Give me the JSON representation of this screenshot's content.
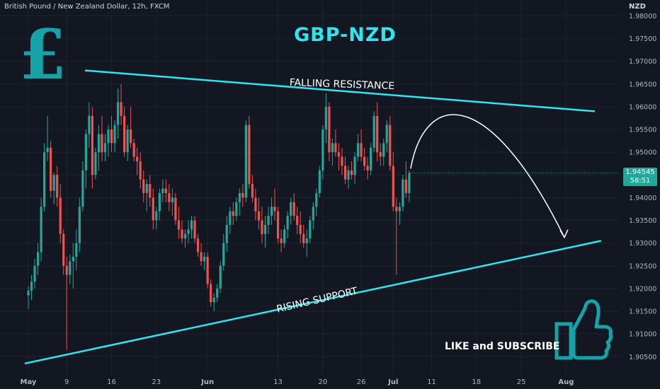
{
  "header": {
    "symbol": "British Pound / New Zealand Dollar, 12h, FXCM",
    "currency_unit": "NZD"
  },
  "overlay": {
    "title": "GBP-NZD",
    "pound_symbol": "£",
    "resistance_label": "FALLING RESISTANCE",
    "support_label": "RISING SUPPORT",
    "cta_text": "LIKE and SUBSCRIBE",
    "thumbs_icon": "thumbs-up-icon"
  },
  "price_tag": {
    "price": "1.94545",
    "countdown": "58:51"
  },
  "colors": {
    "up": "#26a69a",
    "down": "#ef5350",
    "trendline": "#2ee6f0",
    "accent": "#17a2a8",
    "background": "#131722"
  },
  "chart_data": {
    "type": "candlestick",
    "title": "GBP-NZD",
    "y_axis_side": "right",
    "ylim": [
      1.901,
      1.9835
    ],
    "y_ticks": [
      "1.98000",
      "1.97500",
      "1.97000",
      "1.96500",
      "1.96000",
      "1.95500",
      "1.95000",
      "1.94500",
      "1.94000",
      "1.93500",
      "1.93000",
      "1.92500",
      "1.92000",
      "1.91500",
      "1.91000",
      "1.90500"
    ],
    "x_ticks": [
      {
        "label": "May",
        "i": 0
      },
      {
        "label": "9",
        "i": 12
      },
      {
        "label": "16",
        "i": 26
      },
      {
        "label": "23",
        "i": 40
      },
      {
        "label": "Jun",
        "i": 56
      },
      {
        "label": "13",
        "i": 78
      },
      {
        "label": "20",
        "i": 92
      },
      {
        "label": "26",
        "i": 104
      },
      {
        "label": "Jul",
        "i": 114
      },
      {
        "label": "11",
        "i": 126
      },
      {
        "label": "18",
        "i": 140
      },
      {
        "label": "25",
        "i": 154
      },
      {
        "label": "Aug",
        "i": 168
      }
    ],
    "candles": [
      [
        1.9185,
        1.9205,
        1.9155,
        1.9195
      ],
      [
        1.9195,
        1.923,
        1.9175,
        1.9215
      ],
      [
        1.9215,
        1.9265,
        1.92,
        1.925
      ],
      [
        1.925,
        1.93,
        1.923,
        1.928
      ],
      [
        1.928,
        1.94,
        1.926,
        1.938
      ],
      [
        1.938,
        1.952,
        1.937,
        1.95
      ],
      [
        1.95,
        1.958,
        1.948,
        1.951
      ],
      [
        1.951,
        1.9525,
        1.94,
        1.9415
      ],
      [
        1.9415,
        1.9455,
        1.9385,
        1.945
      ],
      [
        1.945,
        1.947,
        1.938,
        1.94
      ],
      [
        1.94,
        1.943,
        1.93,
        1.932
      ],
      [
        1.932,
        1.933,
        1.923,
        1.925
      ],
      [
        1.925,
        1.927,
        1.9065,
        1.923
      ],
      [
        1.923,
        1.9275,
        1.921,
        1.926
      ],
      [
        1.926,
        1.93,
        1.92,
        1.927
      ],
      [
        1.927,
        1.933,
        1.924,
        1.93
      ],
      [
        1.93,
        1.94,
        1.928,
        1.938
      ],
      [
        1.938,
        1.948,
        1.937,
        1.946
      ],
      [
        1.946,
        1.955,
        1.942,
        1.954
      ],
      [
        1.954,
        1.961,
        1.951,
        1.958
      ],
      [
        1.958,
        1.96,
        1.942,
        1.945
      ],
      [
        1.945,
        1.951,
        1.944,
        1.95
      ],
      [
        1.95,
        1.956,
        1.946,
        1.954
      ],
      [
        1.954,
        1.958,
        1.948,
        1.95
      ],
      [
        1.95,
        1.954,
        1.948,
        1.952
      ],
      [
        1.952,
        1.956,
        1.949,
        1.955
      ],
      [
        1.955,
        1.958,
        1.95,
        1.952
      ],
      [
        1.952,
        1.957,
        1.95,
        1.956
      ],
      [
        1.956,
        1.964,
        1.953,
        1.961
      ],
      [
        1.961,
        1.965,
        1.956,
        1.958
      ],
      [
        1.958,
        1.96,
        1.949,
        1.95
      ],
      [
        1.95,
        1.956,
        1.948,
        1.955
      ],
      [
        1.955,
        1.96,
        1.951,
        1.952
      ],
      [
        1.952,
        1.953,
        1.948,
        1.949
      ],
      [
        1.949,
        1.951,
        1.945,
        1.948
      ],
      [
        1.948,
        1.95,
        1.942,
        1.944
      ],
      [
        1.944,
        1.946,
        1.939,
        1.941
      ],
      [
        1.941,
        1.944,
        1.937,
        1.943
      ],
      [
        1.943,
        1.945,
        1.938,
        1.94
      ],
      [
        1.94,
        1.942,
        1.933,
        1.935
      ],
      [
        1.935,
        1.938,
        1.933,
        1.937
      ],
      [
        1.937,
        1.942,
        1.935,
        1.941
      ],
      [
        1.941,
        1.944,
        1.939,
        1.942
      ],
      [
        1.942,
        1.944,
        1.939,
        1.941
      ],
      [
        1.941,
        1.943,
        1.937,
        1.939
      ],
      [
        1.939,
        1.942,
        1.936,
        1.94
      ],
      [
        1.94,
        1.941,
        1.934,
        1.935
      ],
      [
        1.935,
        1.938,
        1.931,
        1.933
      ],
      [
        1.933,
        1.935,
        1.93,
        1.931
      ],
      [
        1.931,
        1.933,
        1.929,
        1.932
      ],
      [
        1.932,
        1.935,
        1.93,
        1.933
      ],
      [
        1.933,
        1.936,
        1.931,
        1.935
      ],
      [
        1.935,
        1.936,
        1.93,
        1.931
      ],
      [
        1.931,
        1.932,
        1.927,
        1.928
      ],
      [
        1.928,
        1.93,
        1.925,
        1.926
      ],
      [
        1.926,
        1.928,
        1.924,
        1.927
      ],
      [
        1.927,
        1.928,
        1.92,
        1.921
      ],
      [
        1.921,
        1.922,
        1.916,
        1.917
      ],
      [
        1.917,
        1.919,
        1.915,
        1.918
      ],
      [
        1.918,
        1.921,
        1.917,
        1.92
      ],
      [
        1.92,
        1.926,
        1.919,
        1.925
      ],
      [
        1.925,
        1.932,
        1.924,
        1.93
      ],
      [
        1.93,
        1.936,
        1.928,
        1.934
      ],
      [
        1.934,
        1.938,
        1.932,
        1.937
      ],
      [
        1.937,
        1.939,
        1.934,
        1.936
      ],
      [
        1.936,
        1.94,
        1.935,
        1.939
      ],
      [
        1.939,
        1.942,
        1.936,
        1.941
      ],
      [
        1.941,
        1.943,
        1.938,
        1.94
      ],
      [
        1.94,
        1.957,
        1.939,
        1.956
      ],
      [
        1.956,
        1.958,
        1.942,
        1.943
      ],
      [
        1.943,
        1.945,
        1.939,
        1.94
      ],
      [
        1.94,
        1.942,
        1.935,
        1.937
      ],
      [
        1.937,
        1.94,
        1.933,
        1.935
      ],
      [
        1.935,
        1.938,
        1.93,
        1.932
      ],
      [
        1.932,
        1.936,
        1.929,
        1.934
      ],
      [
        1.934,
        1.938,
        1.932,
        1.936
      ],
      [
        1.936,
        1.94,
        1.934,
        1.938
      ],
      [
        1.938,
        1.942,
        1.935,
        1.937
      ],
      [
        1.937,
        1.938,
        1.93,
        1.931
      ],
      [
        1.931,
        1.933,
        1.928,
        1.93
      ],
      [
        1.93,
        1.934,
        1.929,
        1.933
      ],
      [
        1.933,
        1.937,
        1.931,
        1.936
      ],
      [
        1.936,
        1.94,
        1.934,
        1.939
      ],
      [
        1.939,
        1.941,
        1.935,
        1.936
      ],
      [
        1.936,
        1.938,
        1.932,
        1.934
      ],
      [
        1.934,
        1.937,
        1.93,
        1.932
      ],
      [
        1.932,
        1.934,
        1.929,
        1.93
      ],
      [
        1.93,
        1.933,
        1.927,
        1.931
      ],
      [
        1.931,
        1.936,
        1.93,
        1.935
      ],
      [
        1.935,
        1.939,
        1.933,
        1.938
      ],
      [
        1.938,
        1.942,
        1.936,
        1.941
      ],
      [
        1.941,
        1.947,
        1.94,
        1.946
      ],
      [
        1.946,
        1.956,
        1.944,
        1.955
      ],
      [
        1.955,
        1.963,
        1.952,
        1.96
      ],
      [
        1.96,
        1.961,
        1.948,
        1.95
      ],
      [
        1.95,
        1.953,
        1.947,
        1.952
      ],
      [
        1.952,
        1.955,
        1.949,
        1.95
      ],
      [
        1.95,
        1.952,
        1.946,
        1.949
      ],
      [
        1.949,
        1.951,
        1.945,
        1.947
      ],
      [
        1.947,
        1.949,
        1.943,
        1.944
      ],
      [
        1.944,
        1.947,
        1.942,
        1.946
      ],
      [
        1.946,
        1.948,
        1.944,
        1.945
      ],
      [
        1.945,
        1.95,
        1.943,
        1.949
      ],
      [
        1.949,
        1.954,
        1.948,
        1.952
      ],
      [
        1.952,
        1.955,
        1.948,
        1.949
      ],
      [
        1.949,
        1.951,
        1.946,
        1.947
      ],
      [
        1.947,
        1.949,
        1.944,
        1.946
      ],
      [
        1.946,
        1.952,
        1.945,
        1.951
      ],
      [
        1.951,
        1.959,
        1.95,
        1.958
      ],
      [
        1.958,
        1.961,
        1.948,
        1.95
      ],
      [
        1.95,
        1.952,
        1.947,
        1.949
      ],
      [
        1.949,
        1.953,
        1.947,
        1.952
      ],
      [
        1.952,
        1.957,
        1.95,
        1.956
      ],
      [
        1.956,
        1.958,
        1.946,
        1.947
      ],
      [
        1.947,
        1.95,
        1.937,
        1.938
      ],
      [
        1.938,
        1.94,
        1.923,
        1.937
      ],
      [
        1.937,
        1.939,
        1.934,
        1.938
      ],
      [
        1.938,
        1.945,
        1.937,
        1.944
      ],
      [
        1.944,
        1.948,
        1.94,
        1.941
      ],
      [
        1.941,
        1.946,
        1.939,
        1.9454
      ]
    ],
    "trendlines": [
      {
        "label": "FALLING RESISTANCE",
        "points": [
          [
            0.16,
            1.968
          ],
          [
            0.96,
            1.959
          ]
        ]
      },
      {
        "label": "RISING SUPPORT",
        "points": [
          [
            0.04,
            1.9035
          ],
          [
            0.97,
            1.9305
          ]
        ]
      }
    ],
    "projection": "arc from last close up to resistance then down to support",
    "last_price": 1.94545
  }
}
